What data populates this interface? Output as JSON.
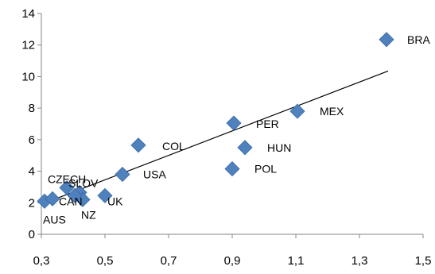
{
  "chart_data": {
    "type": "scatter",
    "title": "",
    "xlabel": "",
    "ylabel": "",
    "xlim": [
      0.3,
      1.5
    ],
    "ylim": [
      0,
      14
    ],
    "x_ticks": [
      "0,3",
      "0,5",
      "0,7",
      "0,9",
      "1,1",
      "1,3",
      "1,5"
    ],
    "y_ticks": [
      "0",
      "2",
      "4",
      "6",
      "8",
      "10",
      "12",
      "14"
    ],
    "grid": false,
    "legend": "none",
    "marker": "diamond",
    "marker_color": "#4F81BD",
    "trendline": {
      "type": "linear",
      "color": "#000000",
      "points": [
        {
          "x": 0.3,
          "y": 1.9
        },
        {
          "x": 1.39,
          "y": 10.35
        }
      ]
    },
    "points": [
      {
        "label": "AUS",
        "x": 0.31,
        "y": 2.1
      },
      {
        "label": "",
        "x": 0.335,
        "y": 2.25
      },
      {
        "label": "CZECH",
        "x": 0.38,
        "y": 2.95
      },
      {
        "label": "SLOV",
        "x": 0.42,
        "y": 2.65
      },
      {
        "label": "NZ",
        "x": 0.43,
        "y": 2.2
      },
      {
        "label": "CAN",
        "x": 0.405,
        "y": 2.45
      },
      {
        "label": "UK",
        "x": 0.5,
        "y": 2.45
      },
      {
        "label": "USA",
        "x": 0.555,
        "y": 3.8
      },
      {
        "label": "COL",
        "x": 0.605,
        "y": 5.65
      },
      {
        "label": "POL",
        "x": 0.9,
        "y": 4.15
      },
      {
        "label": "PER",
        "x": 0.905,
        "y": 7.05
      },
      {
        "label": "HUN",
        "x": 0.94,
        "y": 5.5
      },
      {
        "label": "MEX",
        "x": 1.105,
        "y": 7.8
      },
      {
        "label": "BRA",
        "x": 1.385,
        "y": 12.35
      }
    ]
  }
}
